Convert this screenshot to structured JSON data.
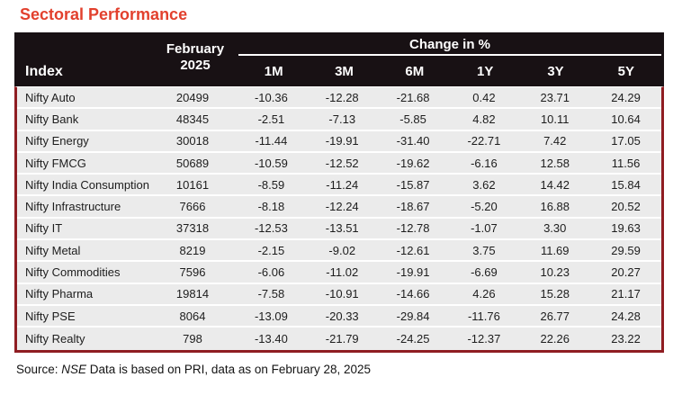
{
  "title": "Sectoral Performance",
  "table": {
    "header": {
      "index_label": "Index",
      "period_line1": "February",
      "period_line2": "2025",
      "change_label": "Change in %",
      "change_columns": [
        "1M",
        "3M",
        "6M",
        "1Y",
        "3Y",
        "5Y"
      ]
    },
    "rows": [
      {
        "index": "Nifty Auto",
        "value": "20499",
        "changes": [
          "-10.36",
          "-12.28",
          "-21.68",
          "0.42",
          "23.71",
          "24.29"
        ]
      },
      {
        "index": "Nifty Bank",
        "value": "48345",
        "changes": [
          "-2.51",
          "-7.13",
          "-5.85",
          "4.82",
          "10.11",
          "10.64"
        ]
      },
      {
        "index": "Nifty Energy",
        "value": "30018",
        "changes": [
          "-11.44",
          "-19.91",
          "-31.40",
          "-22.71",
          "7.42",
          "17.05"
        ]
      },
      {
        "index": "Nifty FMCG",
        "value": "50689",
        "changes": [
          "-10.59",
          "-12.52",
          "-19.62",
          "-6.16",
          "12.58",
          "11.56"
        ]
      },
      {
        "index": "Nifty India Consumption",
        "value": "10161",
        "changes": [
          "-8.59",
          "-11.24",
          "-15.87",
          "3.62",
          "14.42",
          "15.84"
        ]
      },
      {
        "index": "Nifty Infrastructure",
        "value": "7666",
        "changes": [
          "-8.18",
          "-12.24",
          "-18.67",
          "-5.20",
          "16.88",
          "20.52"
        ]
      },
      {
        "index": "Nifty IT",
        "value": "37318",
        "changes": [
          "-12.53",
          "-13.51",
          "-12.78",
          "-1.07",
          "3.30",
          "19.63"
        ]
      },
      {
        "index": "Nifty Metal",
        "value": "8219",
        "changes": [
          "-2.15",
          "-9.02",
          "-12.61",
          "3.75",
          "11.69",
          "29.59"
        ]
      },
      {
        "index": "Nifty Commodities",
        "value": "7596",
        "changes": [
          "-6.06",
          "-11.02",
          "-19.91",
          "-6.69",
          "10.23",
          "20.27"
        ]
      },
      {
        "index": "Nifty Pharma",
        "value": "19814",
        "changes": [
          "-7.58",
          "-10.91",
          "-14.66",
          "4.26",
          "15.28",
          "21.17"
        ]
      },
      {
        "index": "Nifty PSE",
        "value": "8064",
        "changes": [
          "-13.09",
          "-20.33",
          "-29.84",
          "-11.76",
          "26.77",
          "24.28"
        ]
      },
      {
        "index": "Nifty Realty",
        "value": "798",
        "changes": [
          "-13.40",
          "-21.79",
          "-24.25",
          "-12.37",
          "22.26",
          "23.22"
        ]
      }
    ]
  },
  "footer": {
    "prefix": "Source: ",
    "nse": "NSE",
    "suffix": " Data is based on PRI, data as on February 28, 2025"
  },
  "colors": {
    "title_color": "#e2402d",
    "header_bg": "#181114",
    "row_bg": "#ebebeb",
    "border_color": "#8f1d22",
    "text_color": "#1d1d1d"
  }
}
